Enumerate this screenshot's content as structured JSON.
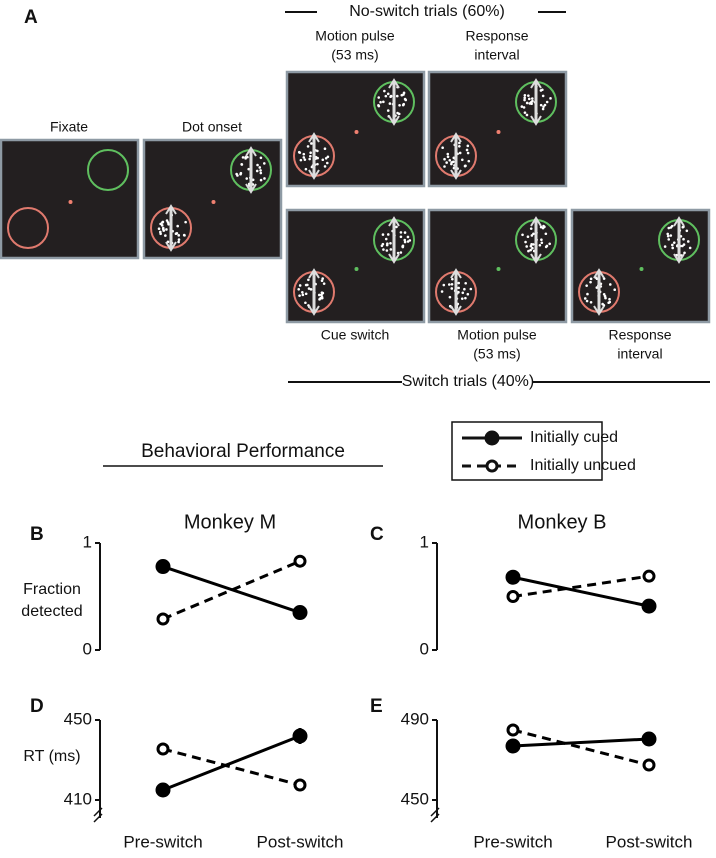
{
  "panel_a": {
    "letter": "A",
    "no_switch_label": "No-switch trials (60%)",
    "switch_label": "Switch trials (40%)",
    "frames": [
      {
        "label": [
          "Fixate"
        ]
      },
      {
        "label": [
          "Dot onset"
        ]
      },
      {
        "label": [
          "Motion pulse",
          "(53  ms)"
        ]
      },
      {
        "label": [
          "Response",
          "interval"
        ]
      },
      {
        "label": [
          "Cue switch"
        ]
      },
      {
        "label": [
          "Motion pulse",
          "(53  ms)"
        ]
      },
      {
        "label": [
          "Response",
          "interval"
        ]
      }
    ]
  },
  "section_title": "Behavioral Performance",
  "legend": [
    {
      "label": "Initially cued",
      "style": "solid",
      "marker": "filled"
    },
    {
      "label": "Initially uncued",
      "style": "dashed",
      "marker": "open"
    }
  ],
  "chart_data": [
    {
      "type": "line",
      "panel": "B",
      "title": "Monkey M",
      "ylabel": [
        "Fraction",
        "detected"
      ],
      "categories": [
        null,
        null
      ],
      "ylim": [
        0,
        1
      ],
      "yticks": [
        0,
        1
      ],
      "series": [
        {
          "style": "solid",
          "marker": "filled",
          "color": "#000000",
          "values": [
            0.78,
            0.35
          ]
        },
        {
          "style": "dashed",
          "marker": "open",
          "color": "#000000",
          "values": [
            0.29,
            0.83
          ]
        }
      ]
    },
    {
      "type": "line",
      "panel": "C",
      "title": "Monkey B",
      "categories": [
        null,
        null
      ],
      "ylim": [
        0,
        1
      ],
      "yticks": [
        0,
        1
      ],
      "series": [
        {
          "style": "solid",
          "marker": "filled",
          "color": "#000000",
          "values": [
            0.68,
            0.41
          ]
        },
        {
          "style": "dashed",
          "marker": "open",
          "color": "#000000",
          "values": [
            0.5,
            0.69
          ]
        }
      ]
    },
    {
      "type": "line",
      "panel": "D",
      "ylabel": [
        "RT (ms)"
      ],
      "categories": [
        "Pre-switch",
        "Post-switch"
      ],
      "ylim": [
        401,
        450
      ],
      "yticks": [
        410,
        450
      ],
      "axis_break": true,
      "series": [
        {
          "style": "solid",
          "marker": "filled",
          "color": "#000000",
          "values": [
            415,
            442
          ],
          "errors": [
            null,
            4
          ]
        },
        {
          "style": "dashed",
          "marker": "open",
          "color": "#000000",
          "values": [
            435.5,
            417.5
          ]
        }
      ]
    },
    {
      "type": "line",
      "panel": "E",
      "categories": [
        "Pre-switch",
        "Post-switch"
      ],
      "ylim": [
        441,
        490
      ],
      "yticks": [
        450,
        490
      ],
      "axis_break": true,
      "series": [
        {
          "style": "solid",
          "marker": "filled",
          "color": "#000000",
          "values": [
            477,
            480.5
          ]
        },
        {
          "style": "dashed",
          "marker": "open",
          "color": "#000000",
          "values": [
            485,
            467.5
          ]
        }
      ]
    }
  ]
}
